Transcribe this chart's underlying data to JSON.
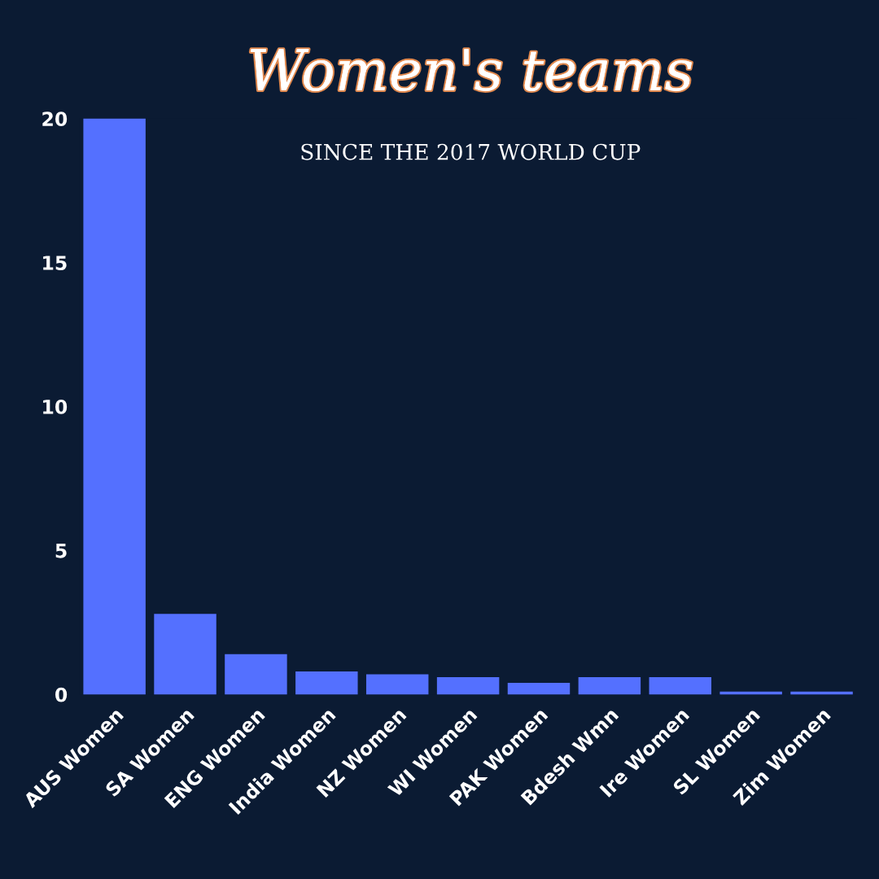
{
  "chart_data": {
    "type": "bar",
    "title": "Women's teams",
    "subtitle": "SINCE THE 2017 WORLD CUP",
    "categories": [
      "AUS Women",
      "SA Women",
      "ENG Women",
      "India Women",
      "NZ Women",
      "WI Women",
      "PAK Women",
      "Bdesh Wmn",
      "Ire Women",
      "SL Women",
      "Zim Women"
    ],
    "values": [
      20,
      2.8,
      1.4,
      0.8,
      0.7,
      0.6,
      0.4,
      0.6,
      0.6,
      0.1,
      0.1
    ],
    "color": "#5470ff",
    "ylim": [
      0,
      20
    ],
    "yticks": [
      0,
      5,
      10,
      15,
      20
    ],
    "grid": false
  }
}
